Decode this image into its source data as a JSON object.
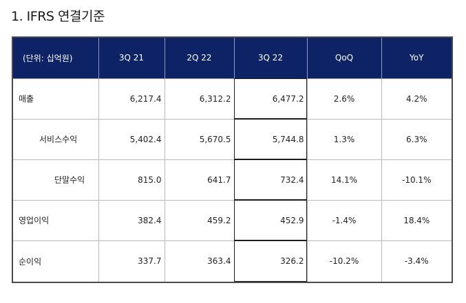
{
  "document": {
    "title": "1. IFRS 연결기준"
  },
  "table": {
    "headers": [
      "(단위: 십억원)",
      "3Q 21",
      "2Q 22",
      "3Q 22",
      "QoQ",
      "YoY"
    ],
    "rows": [
      {
        "label": "매출",
        "values": [
          "6,217.4",
          "6,312.2",
          "6,477.2",
          "2.6%",
          "4.2%"
        ]
      },
      {
        "label": "서비스수익",
        "values": [
          "5,402.4",
          "5,670.5",
          "5,744.8",
          "1.3%",
          "6.3%"
        ]
      },
      {
        "label": "단말수익",
        "values": [
          "815.0",
          "641.7",
          "732.4",
          "14.1%",
          "-10.1%"
        ]
      },
      {
        "label": "영업이익",
        "values": [
          "382.4",
          "459.2",
          "452.9",
          "-1.4%",
          "18.4%"
        ]
      },
      {
        "label": "순이익",
        "values": [
          "337.7",
          "363.4",
          "326.2",
          "-10.2%",
          "-3.4%"
        ]
      }
    ]
  },
  "colors": {
    "header_background": "#0d2366",
    "header_text": "#ffffff",
    "grid_line": "#b9b9b9",
    "frame": "#4a4a4a"
  }
}
